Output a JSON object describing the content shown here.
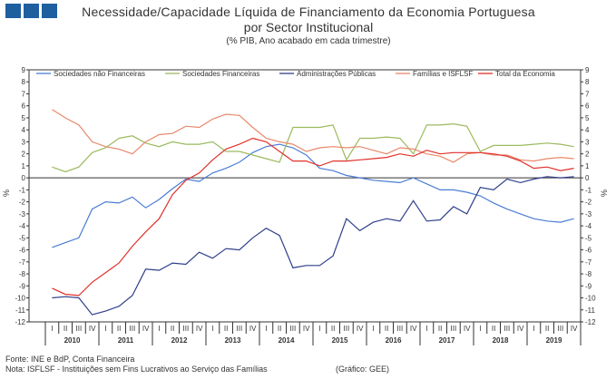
{
  "header": {
    "title": "Necessidade/Capacidade Líquida de Financiamento da Economia Portuguesa",
    "title2": "por Sector Institucional",
    "subtitle": "(% PIB, Ano acabado em cada trimestre)"
  },
  "footer": {
    "source": "Fonte: INE e BdP, Conta Financeira",
    "note": "Nota: ISFLSF - Instituições sem Fins Lucrativos ao Serviço das Famílias",
    "credit": "(Gráfico: GEE)"
  },
  "colors": {
    "logo": "#1f5fa0",
    "axis": "#333333"
  },
  "chart_data": {
    "type": "line",
    "ylabel_left": "%",
    "ylabel_right": "%",
    "ylim": [
      -12,
      9
    ],
    "yticks": [
      9,
      8,
      7,
      6,
      5,
      4,
      3,
      2,
      1,
      0,
      -1,
      -2,
      -3,
      -4,
      -5,
      -6,
      -7,
      -8,
      -9,
      -10,
      -11,
      -12
    ],
    "grid": false,
    "legend_position": "top",
    "quarter_labels": [
      "I",
      "II",
      "III",
      "IV"
    ],
    "years": [
      "2010",
      "2011",
      "2012",
      "2013",
      "2014",
      "2015",
      "2016",
      "2017",
      "2018",
      "2019"
    ],
    "series": [
      {
        "name": "Sociedades não Financeiras",
        "color": "#4a7dd4",
        "values": [
          -5.8,
          -5.4,
          -5.0,
          -2.6,
          -2.0,
          -2.1,
          -1.6,
          -2.5,
          -1.8,
          -0.9,
          -0.1,
          -0.3,
          0.4,
          0.8,
          1.3,
          2.1,
          2.6,
          2.8,
          2.5,
          1.9,
          0.8,
          0.6,
          0.2,
          0.0,
          -0.2,
          -0.3,
          -0.4,
          0.0,
          -0.5,
          -1.0,
          -1.0,
          -1.2,
          -1.5,
          -2.1,
          -2.6,
          -3.0,
          -3.4,
          -3.6,
          -3.7,
          -3.4
        ]
      },
      {
        "name": "Sociedades Financeiras",
        "color": "#9cba5e",
        "values": [
          0.9,
          0.5,
          0.9,
          2.1,
          2.5,
          3.3,
          3.5,
          2.9,
          2.6,
          3.0,
          2.8,
          2.8,
          3.0,
          2.2,
          2.2,
          1.9,
          1.6,
          1.3,
          4.2,
          4.2,
          4.2,
          4.4,
          1.5,
          3.3,
          3.3,
          3.4,
          3.3,
          2.0,
          4.4,
          4.4,
          4.5,
          4.3,
          2.2,
          2.7,
          2.7,
          2.7,
          2.8,
          2.9,
          2.8,
          2.6
        ]
      },
      {
        "name": "Administrações Públicas",
        "color": "#2f3f8a",
        "values": [
          -10.0,
          -9.9,
          -10.0,
          -11.4,
          -11.1,
          -10.7,
          -9.8,
          -7.6,
          -7.7,
          -7.1,
          -7.2,
          -6.2,
          -6.7,
          -5.9,
          -6.0,
          -5.0,
          -4.2,
          -4.8,
          -7.5,
          -7.3,
          -7.3,
          -6.5,
          -3.4,
          -4.4,
          -3.7,
          -3.4,
          -3.6,
          -1.9,
          -3.6,
          -3.5,
          -2.4,
          -3.0,
          -0.8,
          -1.0,
          -0.1,
          -0.4,
          -0.1,
          0.1,
          0.0,
          0.1
        ]
      },
      {
        "name": "Famílias e ISFLSF",
        "color": "#e8886a",
        "values": [
          5.7,
          5.0,
          4.4,
          3.0,
          2.6,
          2.4,
          2.0,
          3.0,
          3.6,
          3.7,
          4.3,
          4.2,
          4.9,
          5.3,
          5.2,
          4.2,
          3.3,
          3.0,
          2.8,
          2.2,
          2.5,
          2.6,
          2.5,
          2.6,
          2.3,
          2.0,
          2.5,
          2.4,
          2.0,
          1.8,
          1.3,
          2.0,
          2.1,
          1.9,
          1.9,
          1.5,
          1.4,
          1.6,
          1.7,
          1.6
        ]
      },
      {
        "name": "Total da Economia",
        "color": "#e0302a",
        "values": [
          -9.2,
          -9.7,
          -9.8,
          -8.7,
          -7.9,
          -7.1,
          -5.7,
          -4.5,
          -3.4,
          -1.4,
          -0.2,
          0.4,
          1.5,
          2.4,
          2.8,
          3.3,
          3.0,
          2.2,
          1.4,
          1.4,
          1.0,
          1.4,
          1.4,
          1.5,
          1.6,
          1.7,
          2.0,
          1.8,
          2.3,
          2.0,
          2.1,
          2.1,
          2.1,
          2.0,
          1.8,
          1.4,
          0.8,
          0.9,
          0.6,
          0.8
        ]
      }
    ]
  }
}
